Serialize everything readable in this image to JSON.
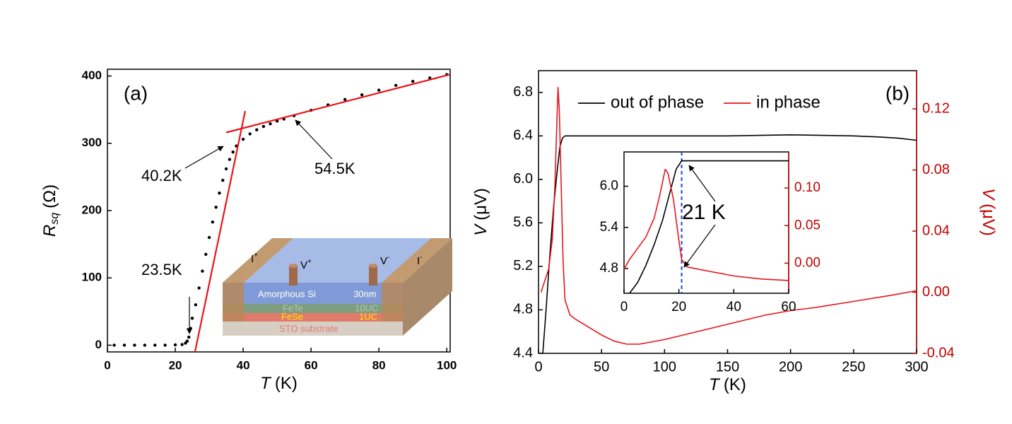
{
  "chart_data": [
    {
      "type": "scatter",
      "panel_label": "(a)",
      "xlabel": {
        "symbol": "T",
        "unit": "(K)"
      },
      "ylabel": {
        "symbol": "R",
        "subscript": "sq",
        "unit": "(Ω)"
      },
      "xlim": [
        0,
        101
      ],
      "ylim": [
        -10,
        410
      ],
      "xticks": [
        0,
        20,
        40,
        60,
        80,
        100
      ],
      "yticks": [
        0,
        100,
        200,
        300,
        400
      ],
      "series": [
        {
          "color": "#000000",
          "x": [
            2,
            5,
            8,
            11,
            14,
            17,
            20,
            22,
            23,
            23.5,
            24,
            24.5,
            25,
            26,
            27,
            28,
            29,
            30,
            31,
            32,
            33,
            34,
            35,
            36,
            37,
            38,
            40,
            42,
            44,
            46,
            48,
            50,
            52,
            55,
            60,
            65,
            70,
            75,
            80,
            85,
            90,
            95,
            100
          ],
          "values": [
            0,
            0,
            0,
            0,
            0,
            0,
            0.5,
            1,
            3,
            6,
            12,
            25,
            40,
            60,
            85,
            110,
            135,
            160,
            183,
            205,
            226,
            245,
            262,
            276,
            287,
            296,
            306,
            314,
            320,
            325,
            329,
            333,
            336,
            341,
            349,
            357,
            365,
            372,
            379,
            386,
            392,
            397,
            402
          ]
        }
      ],
      "fit_lines": [
        {
          "color": "#e8141b",
          "x": [
            25.8,
            40.6
          ],
          "values": [
            -10,
            348
          ]
        },
        {
          "color": "#e8141b",
          "x": [
            35,
            100.8
          ],
          "values": [
            316,
            402
          ]
        }
      ],
      "annotations": [
        "40.2K",
        "54.5K",
        "23.5K"
      ],
      "inset_diagram": {
        "contacts": [
          {
            "base": "I",
            "sup": "+"
          },
          {
            "base": "V",
            "sup": "+"
          },
          {
            "base": "V",
            "sup": "-"
          },
          {
            "base": "I",
            "sup": "-"
          }
        ],
        "layers": [
          {
            "name": "Amorphous Si",
            "thickness": "30nm"
          },
          {
            "name": "FeTe",
            "thickness": "10UC"
          },
          {
            "name": "FeSe",
            "thickness": "1UC"
          },
          {
            "name": "STO  substrate"
          }
        ]
      }
    },
    {
      "type": "line",
      "panel_label": "(b)",
      "xlabel": {
        "symbol": "T",
        "unit": "(K)"
      },
      "ylabel": {
        "symbol": "V",
        "unit": "(μV)"
      },
      "y2label": {
        "symbol": "V",
        "unit": "(μV)"
      },
      "xlim": [
        0,
        300
      ],
      "ylim": [
        4.4,
        7.0
      ],
      "y2lim": [
        -0.04,
        0.145
      ],
      "xticks": [
        0,
        50,
        100,
        150,
        200,
        250,
        300
      ],
      "yticks": [
        4.4,
        4.8,
        5.2,
        5.6,
        {
          "value": 6,
          "label": "6.0"
        },
        6.4,
        6.8
      ],
      "y2ticks": [
        -0.04,
        {
          "value": 0,
          "label": "0.00"
        },
        0.04,
        0.08,
        0.12
      ],
      "legend": "top",
      "series": [
        {
          "name": "out of phase",
          "color": "#000000",
          "x": [
            3.4,
            6,
            9,
            12,
            15,
            17,
            19,
            21,
            30,
            100,
            150,
            200,
            250,
            270,
            285,
            300
          ],
          "values": [
            4.4,
            4.8,
            5.3,
            5.75,
            6.1,
            6.3,
            6.38,
            6.4,
            6.4,
            6.4,
            6.4,
            6.41,
            6.4,
            6.39,
            6.38,
            6.36
          ]
        },
        {
          "name": "in phase",
          "color": "#e8141b",
          "axis": "y2",
          "x": [
            2,
            4,
            8,
            11,
            13,
            14.5,
            15.5,
            16.5,
            18,
            19.5,
            21,
            25,
            30,
            40,
            50,
            60,
            70,
            80,
            100,
            120,
            150,
            180,
            200,
            220,
            250,
            280,
            300
          ],
          "values": [
            0,
            0.005,
            0.015,
            0.035,
            0.07,
            0.11,
            0.134,
            0.12,
            0.07,
            0.02,
            -0.005,
            -0.015,
            -0.018,
            -0.023,
            -0.028,
            -0.032,
            -0.034,
            -0.034,
            -0.031,
            -0.027,
            -0.021,
            -0.015,
            -0.012,
            -0.01,
            -0.006,
            -0.002,
            0.001
          ]
        }
      ]
    },
    {
      "type": "line",
      "xlim": [
        0,
        60
      ],
      "ylim": [
        4.44,
        6.5
      ],
      "y2lim": [
        -0.04,
        0.148
      ],
      "xticks": [
        0,
        20,
        40,
        60
      ],
      "yticks": [
        4.8,
        5.4,
        {
          "value": 6,
          "label": "6.0"
        }
      ],
      "y2ticks": [
        {
          "value": 0,
          "label": "0.00"
        },
        0.05,
        {
          "value": 0.1,
          "label": "0.10"
        }
      ],
      "vline": {
        "x": 21,
        "color": "#1f3fe0"
      },
      "annotations": [
        "21 K"
      ],
      "series": [
        {
          "color": "#000000",
          "x": [
            2,
            5,
            8,
            11,
            14,
            17,
            19,
            21,
            30,
            60
          ],
          "values": [
            4.44,
            4.6,
            4.85,
            5.15,
            5.5,
            5.95,
            6.25,
            6.37,
            6.37,
            6.37
          ]
        },
        {
          "color": "#e8141b",
          "axis": "y2",
          "x": [
            0,
            2,
            5,
            8,
            11,
            13,
            15,
            16,
            18,
            20,
            21,
            23,
            30,
            40,
            50,
            60
          ],
          "values": [
            -0.008,
            0.005,
            0.02,
            0.035,
            0.06,
            0.09,
            0.125,
            0.12,
            0.085,
            0.03,
            0.005,
            -0.005,
            -0.01,
            -0.017,
            -0.021,
            -0.023
          ]
        }
      ]
    }
  ]
}
